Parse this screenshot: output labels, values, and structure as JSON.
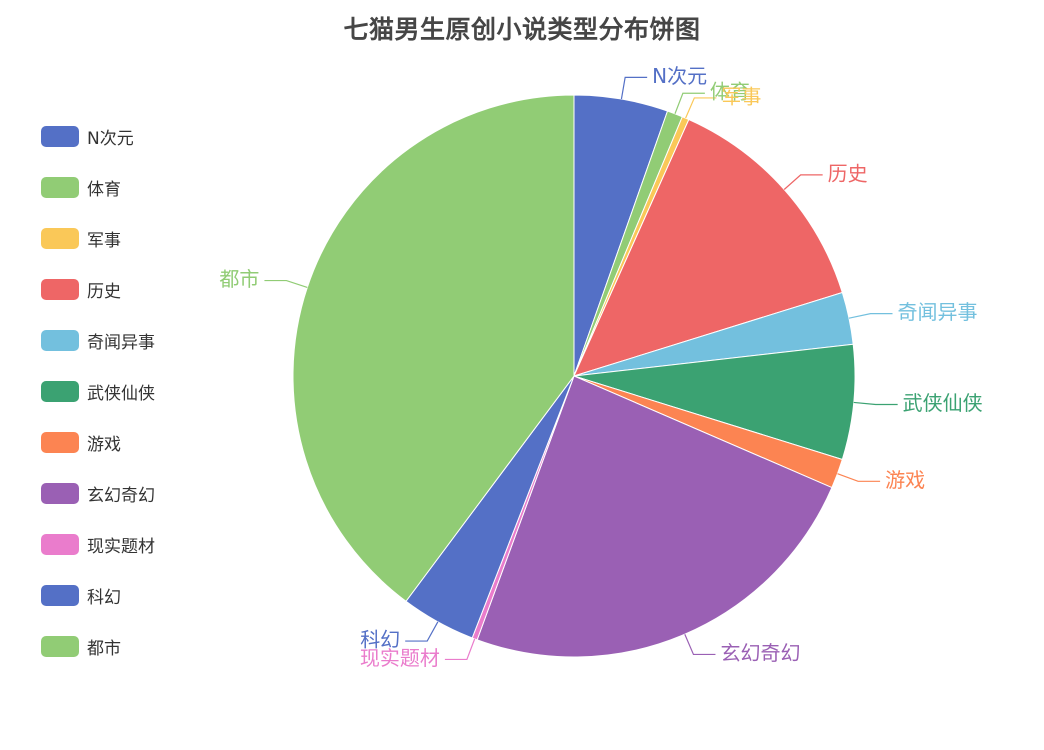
{
  "chart_data": {
    "type": "pie",
    "title": "七猫男生原创小说类型分布饼图",
    "legend_position": "left",
    "categories": [
      "N次元",
      "体育",
      "军事",
      "历史",
      "奇闻异事",
      "武侠仙侠",
      "游戏",
      "玄幻奇幻",
      "现实题材",
      "科幻",
      "都市"
    ],
    "values": [
      5.4,
      0.9,
      0.4,
      13.5,
      3.0,
      6.6,
      1.7,
      24.1,
      0.3,
      4.3,
      39.8
    ],
    "colors": [
      "#5470c6",
      "#91cc75",
      "#fac858",
      "#ee6666",
      "#73c0de",
      "#3ba272",
      "#fc8452",
      "#9a60b4",
      "#ea7ccc",
      "#5470c6",
      "#91cc75"
    ]
  }
}
